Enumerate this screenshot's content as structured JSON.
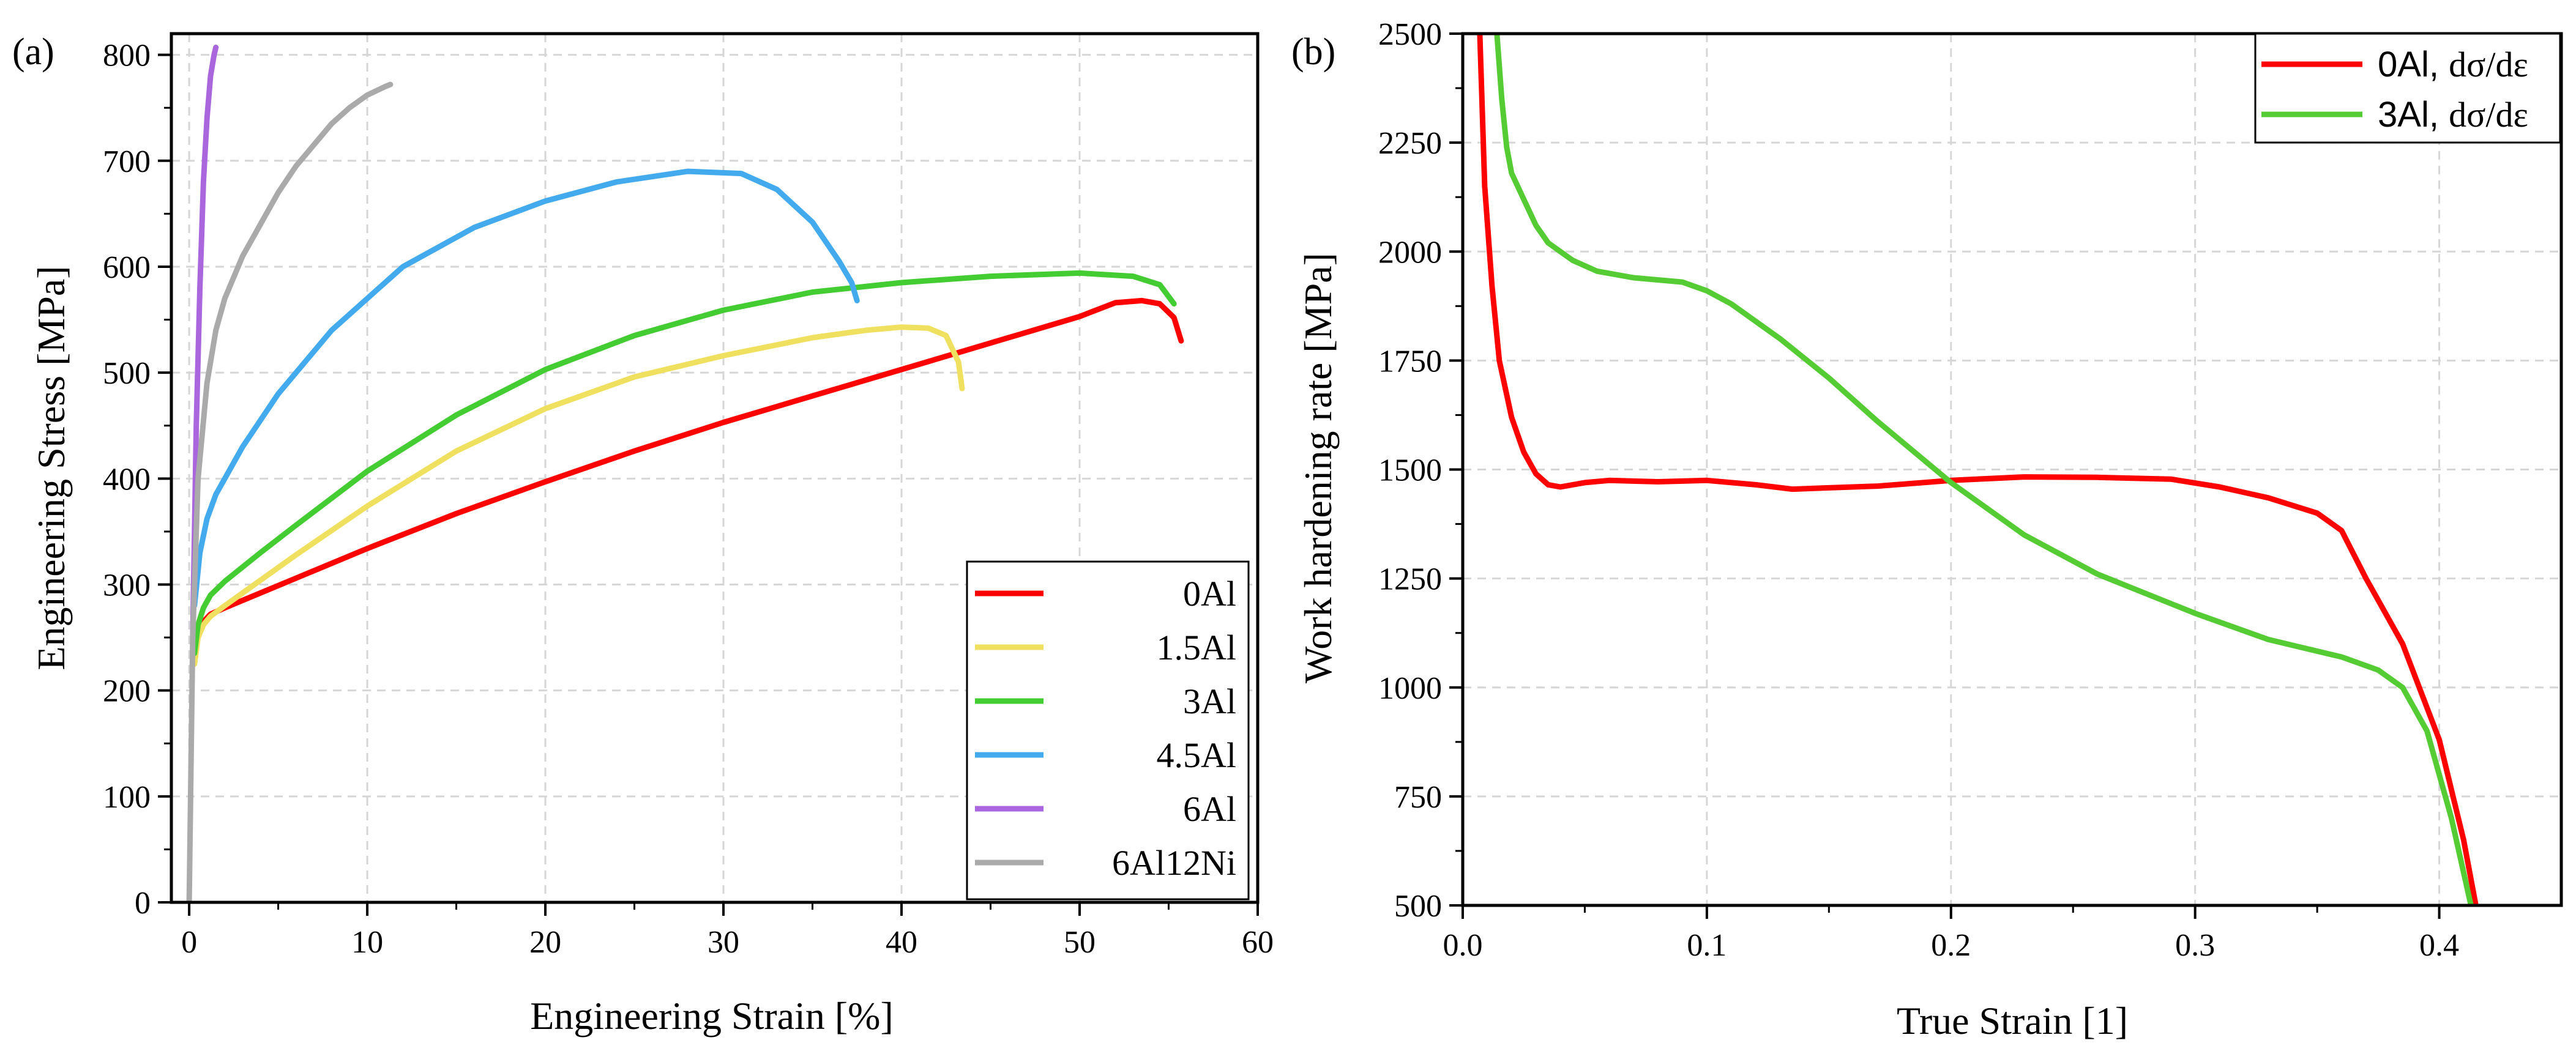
{
  "chart_data": [
    {
      "type": "line",
      "panel_label": "(a)",
      "xlabel": "Engineering Strain [%]",
      "ylabel": "Engineering Stress [MPa]",
      "xlim": [
        -1,
        60
      ],
      "ylim": [
        0,
        820
      ],
      "xticks": [
        0,
        10,
        20,
        30,
        40,
        50,
        60
      ],
      "xtick_labels": [
        "0",
        "10",
        "20",
        "30",
        "40",
        "50",
        "60"
      ],
      "yticks": [
        0,
        100,
        200,
        300,
        400,
        500,
        600,
        700,
        800
      ],
      "ytick_labels": [
        "0",
        "100",
        "200",
        "300",
        "400",
        "500",
        "600",
        "700",
        "800"
      ],
      "grid": true,
      "legend_position": "bottom-right",
      "series": [
        {
          "name": "0Al",
          "color": "#ff0000",
          "x": [
            0.3,
            0.5,
            0.8,
            1.2,
            2,
            4,
            6,
            10,
            15,
            20,
            25,
            30,
            35,
            40,
            45,
            50,
            52,
            53.5,
            54.5,
            55.3,
            55.7
          ],
          "y": [
            230,
            255,
            265,
            272,
            278,
            292,
            306,
            334,
            367,
            397,
            426,
            453,
            478,
            503,
            528,
            553,
            566,
            568,
            565,
            552,
            530
          ]
        },
        {
          "name": "1.5Al",
          "color": "#f0e060",
          "x": [
            0.3,
            0.5,
            0.8,
            1.2,
            2,
            4,
            6,
            10,
            15,
            20,
            25,
            30,
            35,
            38,
            40,
            41.5,
            42.5,
            43.2,
            43.4
          ],
          "y": [
            225,
            250,
            262,
            270,
            280,
            304,
            328,
            374,
            426,
            466,
            496,
            516,
            533,
            540,
            543,
            542,
            535,
            510,
            485
          ]
        },
        {
          "name": "3Al",
          "color": "#44cc33",
          "x": [
            0.3,
            0.5,
            0.8,
            1.2,
            2,
            4,
            6,
            10,
            15,
            20,
            25,
            30,
            35,
            40,
            45,
            50,
            53,
            54.5,
            55.3
          ],
          "y": [
            235,
            262,
            278,
            290,
            303,
            330,
            356,
            407,
            460,
            503,
            535,
            559,
            576,
            585,
            591,
            594,
            591,
            583,
            565
          ]
        },
        {
          "name": "4.5Al",
          "color": "#44aaee",
          "x": [
            0.3,
            0.6,
            1,
            1.5,
            2,
            3,
            5,
            8,
            12,
            16,
            20,
            24,
            28,
            31,
            33,
            35,
            36.5,
            37.2,
            37.5
          ],
          "y": [
            280,
            330,
            362,
            385,
            400,
            430,
            480,
            540,
            600,
            637,
            662,
            680,
            690,
            688,
            673,
            642,
            605,
            585,
            568
          ]
        },
        {
          "name": "6Al",
          "color": "#aa66dd",
          "x": [
            0.2,
            0.4,
            0.6,
            0.8,
            1.0,
            1.2,
            1.4,
            1.5
          ],
          "y": [
            250,
            450,
            580,
            680,
            740,
            780,
            800,
            807
          ]
        },
        {
          "name": "6Al12Ni",
          "color": "#aaaaaa",
          "x": [
            0,
            0.2,
            0.5,
            1,
            1.5,
            2,
            3,
            4,
            5,
            6,
            7,
            8,
            9,
            10,
            11,
            11.3
          ],
          "y": [
            0,
            250,
            400,
            490,
            540,
            570,
            610,
            640,
            670,
            695,
            715,
            735,
            750,
            762,
            770,
            772
          ]
        }
      ]
    },
    {
      "type": "line",
      "panel_label": "(b)",
      "xlabel": "True Strain [1]",
      "ylabel": "Work hardening rate [MPa]",
      "xlim": [
        0.0,
        0.45
      ],
      "ylim": [
        500,
        2500
      ],
      "xticks": [
        0.0,
        0.1,
        0.2,
        0.3,
        0.4
      ],
      "xtick_labels": [
        "0.0",
        "0.1",
        "0.2",
        "0.3",
        "0.4"
      ],
      "yticks": [
        500,
        750,
        1000,
        1250,
        1500,
        1750,
        2000,
        2250,
        2500
      ],
      "ytick_labels": [
        "500",
        "750",
        "1000",
        "1250",
        "1500",
        "1750",
        "2000",
        "2250",
        "2500"
      ],
      "grid": true,
      "legend_position": "top-right",
      "series": [
        {
          "name": "0Al",
          "name_suffix": "dσ/dε",
          "color": "#ff0000",
          "x": [
            0.007,
            0.009,
            0.012,
            0.015,
            0.02,
            0.025,
            0.03,
            0.035,
            0.04,
            0.05,
            0.06,
            0.08,
            0.1,
            0.12,
            0.135,
            0.15,
            0.17,
            0.2,
            0.23,
            0.26,
            0.29,
            0.31,
            0.33,
            0.35,
            0.36,
            0.37,
            0.385,
            0.4,
            0.41,
            0.415
          ],
          "y": [
            2500,
            2150,
            1920,
            1750,
            1620,
            1540,
            1490,
            1465,
            1460,
            1470,
            1475,
            1472,
            1475,
            1465,
            1455,
            1458,
            1462,
            1475,
            1483,
            1482,
            1478,
            1460,
            1435,
            1400,
            1360,
            1250,
            1100,
            880,
            650,
            500
          ]
        },
        {
          "name": "3Al",
          "name_suffix": "dσ/dε",
          "color": "#55cc33",
          "x": [
            0.014,
            0.016,
            0.018,
            0.02,
            0.025,
            0.03,
            0.035,
            0.045,
            0.055,
            0.07,
            0.09,
            0.1,
            0.11,
            0.13,
            0.15,
            0.17,
            0.2,
            0.23,
            0.26,
            0.3,
            0.33,
            0.36,
            0.375,
            0.385,
            0.395,
            0.405,
            0.413
          ],
          "y": [
            2500,
            2350,
            2240,
            2180,
            2120,
            2060,
            2020,
            1980,
            1955,
            1940,
            1930,
            1910,
            1880,
            1800,
            1710,
            1610,
            1470,
            1350,
            1260,
            1170,
            1110,
            1070,
            1040,
            1000,
            900,
            700,
            500
          ]
        }
      ]
    }
  ]
}
